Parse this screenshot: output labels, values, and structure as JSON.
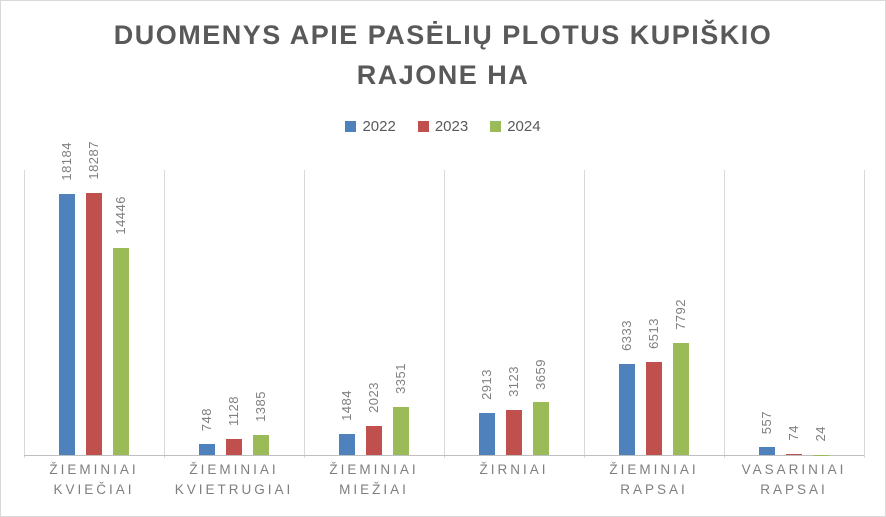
{
  "window": {
    "background_color": "#FFFFFF",
    "border_color": "#D9D9D9"
  },
  "chart_data": {
    "type": "bar",
    "title": "DUOMENYS APIE PASĖLIŲ PLOTUS KUPIŠKIO RAJONE HA",
    "title_lines": [
      "DUOMENYS APIE PASĖLIŲ PLOTUS KUPIŠKIO",
      "RAJONE HA"
    ],
    "categories": [
      "ŽIEMINIAI KVIEČIAI",
      "ŽIEMINIAI KVIETRUGIAI",
      "ŽIEMINIAI MIEŽIAI",
      "ŽIRNIAI",
      "ŽIEMINIAI RAPSAI",
      "VASARINIAI RAPSAI"
    ],
    "series": [
      {
        "name": "2022",
        "color": "#4F81BD",
        "values": [
          18184,
          748,
          1484,
          2913,
          6333,
          557
        ]
      },
      {
        "name": "2023",
        "color": "#C0504D",
        "values": [
          18287,
          1128,
          2023,
          3123,
          6513,
          74
        ]
      },
      {
        "name": "2024",
        "color": "#9BBB59",
        "values": [
          14446,
          1385,
          3351,
          3659,
          7792,
          24
        ]
      }
    ],
    "value_axis": {
      "min": 0,
      "max": 20000,
      "visible": false
    },
    "data_labels": {
      "visible": true,
      "rotation_deg": -90,
      "color": "#7F7F7F"
    },
    "legend": {
      "position": "top",
      "labels": [
        "2022",
        "2023",
        "2024"
      ]
    },
    "gridlines": {
      "vertical_category_separators": true,
      "color": "#D9D9D9",
      "baseline_color": "#BFBFBF"
    },
    "text_colors": {
      "title": "#595959",
      "legend": "#595959",
      "category_labels": "#7F7F7F"
    }
  }
}
